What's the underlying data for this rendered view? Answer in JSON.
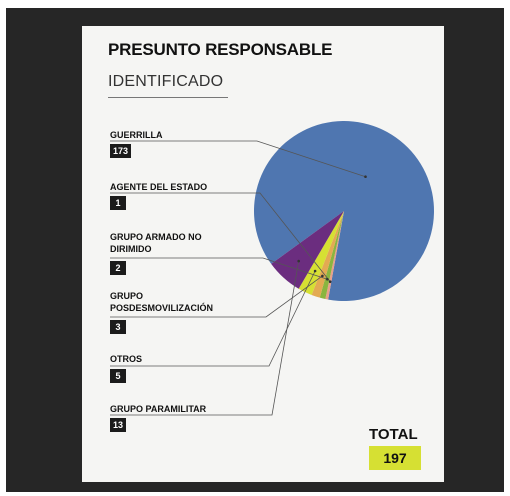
{
  "title": "PRESUNTO RESPONSABLE",
  "subtitle": "IDENTIFICADO",
  "total": {
    "label": "TOTAL",
    "value": "197"
  },
  "chart_data": {
    "type": "pie",
    "categories": [
      "GUERRILLA",
      "AGENTE DEL ESTADO",
      "GRUPO ARMADO NO DIRIMIDO",
      "GRUPO POSDESMOVILIZACIÓN",
      "OTROS",
      "GRUPO PARAMILITAR"
    ],
    "values": [
      173,
      1,
      2,
      3,
      5,
      13
    ],
    "colors": [
      "#4f76b0",
      "#e8a08a",
      "#8ab53f",
      "#e3aa52",
      "#d6e033",
      "#6b2d7f"
    ],
    "legend": "left",
    "leader_lines": true
  }
}
